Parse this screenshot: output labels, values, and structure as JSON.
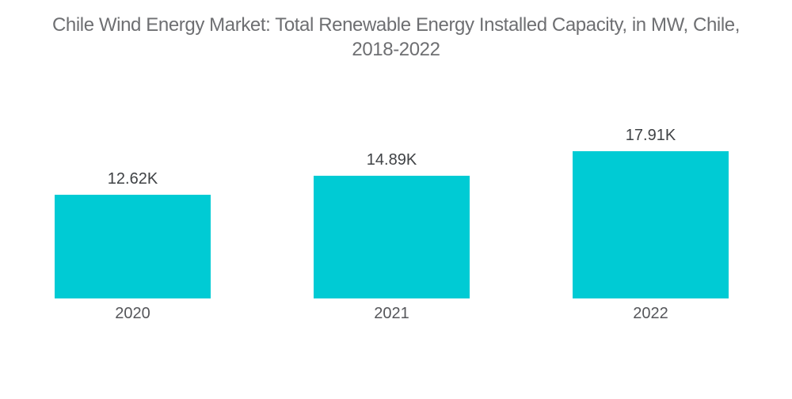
{
  "title": {
    "line1": "Chile Wind Energy Market: Total Renewable Energy Installed Capacity, in MW, Chile,",
    "line2": "2018-2022"
  },
  "chart_data": {
    "type": "bar",
    "title": "Chile Wind Energy Market: Total Renewable Energy Installed Capacity, in MW, Chile, 2018-2022",
    "categories": [
      "2020",
      "2021",
      "2022"
    ],
    "values": [
      12620,
      14890,
      17910
    ],
    "value_labels": [
      "12.62K",
      "14.89K",
      "17.91K"
    ],
    "unit": "MW",
    "xlabel": "",
    "ylabel": "",
    "ylim": [
      0,
      18600
    ],
    "grid": false,
    "legend": false,
    "bar_color": "#00CBD4",
    "background_color": "#FFFFFF",
    "title_color": "#6E6F72",
    "value_label_color": "#3F4245",
    "category_label_color": "#55565A"
  }
}
